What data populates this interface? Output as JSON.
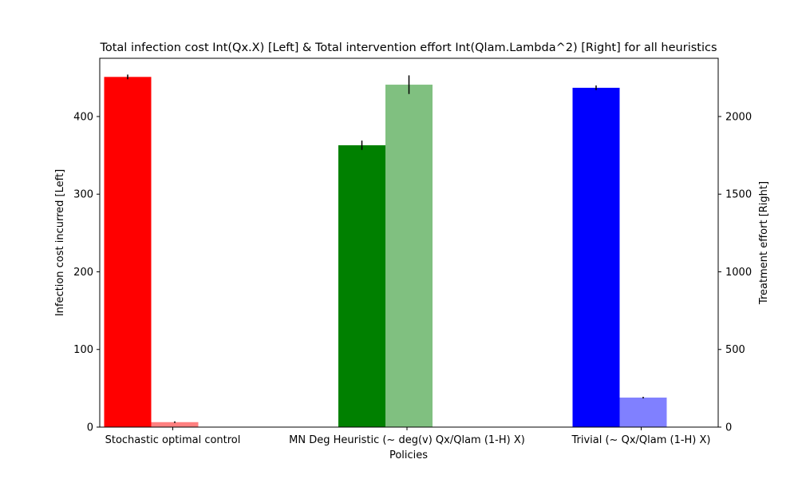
{
  "chart_data": {
    "type": "bar",
    "title": "Total infection cost Int(Qx.X) [Left] & Total intervention effort Int(Qlam.Lambda^2) [Right] for all heuristics",
    "xlabel": "Policies",
    "ylabel_left": "Infection cost incurred [Left]",
    "ylabel_right": "Treatment effort [Right]",
    "categories": [
      "Stochastic optimal control",
      "MN Deg Heuristic (~ deg(v) Qx/Qlam (1-H) X)",
      "Trivial (~ Qx/Qlam (1-H) X)"
    ],
    "ylim_left": [
      0,
      475
    ],
    "ylim_right": [
      0,
      2375
    ],
    "yticks_left": [
      0,
      100,
      200,
      300,
      400
    ],
    "yticks_right": [
      0,
      500,
      1000,
      1500,
      2000
    ],
    "grid": false,
    "series": [
      {
        "axis": "left",
        "values": [
          451,
          363,
          437
        ],
        "errors": [
          3,
          6,
          3
        ],
        "colors": [
          "#ff0000",
          "#008000",
          "#0000ff"
        ]
      },
      {
        "axis": "right",
        "values": [
          32,
          2205,
          190
        ],
        "errors": [
          0,
          60,
          0
        ],
        "colors": [
          "#ff8080",
          "#80c080",
          "#8080ff"
        ]
      }
    ]
  }
}
